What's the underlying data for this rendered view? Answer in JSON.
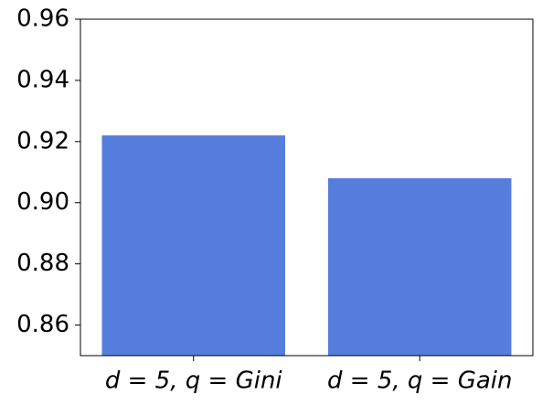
{
  "chart_data": {
    "type": "bar",
    "categories": [
      "d = 5, q = Gini",
      "d = 5, q = Gain"
    ],
    "values": [
      0.922,
      0.908
    ],
    "color": "#557ddd",
    "ylim": [
      0.85,
      0.96
    ],
    "yticks": [
      0.86,
      0.88,
      {
        "value": 0.9,
        "label": "0.90"
      },
      0.92,
      0.94,
      0.96
    ],
    "grid": false
  }
}
